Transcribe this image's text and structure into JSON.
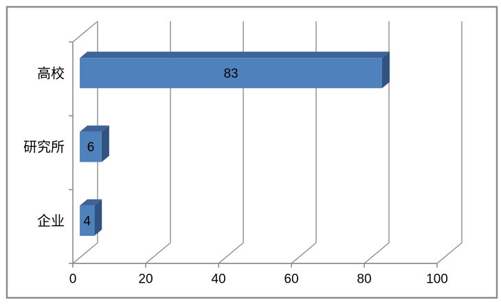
{
  "chart_data": {
    "type": "bar",
    "orientation": "horizontal",
    "style": "3d",
    "title": "",
    "xlabel": "",
    "ylabel": "",
    "categories": [
      "高校",
      "研究所",
      "企业"
    ],
    "values": [
      83,
      6,
      4
    ],
    "data_labels": [
      "83",
      "6",
      "4"
    ],
    "xlim": [
      0,
      100
    ],
    "xticks": [
      0,
      20,
      40,
      60,
      80,
      100
    ],
    "grid": true,
    "legend": false,
    "colors": {
      "bar_front": "#4F81BD",
      "bar_top": "#3E6497",
      "bar_side": "#34527E",
      "gridline": "#8C8C8C",
      "axis": "#8C8C8C",
      "frame_border": "#8A8A8A",
      "background": "#FFFFFF",
      "text": "#000000"
    }
  }
}
